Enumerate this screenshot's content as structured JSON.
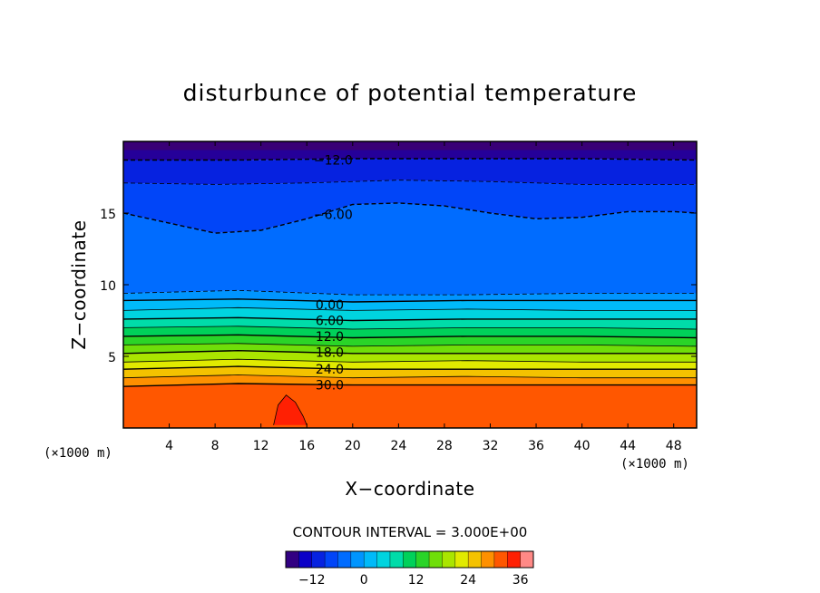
{
  "chart_data": {
    "type": "heatmap",
    "title": "disturbunce of potential temperature",
    "xlabel": "X−coordinate",
    "ylabel": "Z−coordinate",
    "x_unit": "(×1000 m)",
    "y_unit": "(×1000 m)",
    "xlim": [
      0,
      50
    ],
    "ylim": [
      0,
      20
    ],
    "x_ticks": [
      4,
      8,
      12,
      16,
      20,
      24,
      28,
      32,
      36,
      40,
      44,
      48
    ],
    "y_ticks": [
      5,
      10,
      15
    ],
    "contour_interval_text": "CONTOUR INTERVAL = 3.000E+00",
    "contour_interval": 3.0,
    "color_range": [
      -18,
      39
    ],
    "colorbar_ticks": [
      "−12",
      "0",
      "12",
      "24",
      "36"
    ],
    "colorbar_tick_values": [
      -12,
      0,
      12,
      24,
      36
    ],
    "contour_labels": [
      {
        "text": "−12.0",
        "value": -12,
        "x": 18.3,
        "z": 18.7
      },
      {
        "text": "−6.00",
        "value": -6,
        "x": 18.3,
        "z": 14.9
      },
      {
        "text": "0.00",
        "value": 0,
        "x": 18.0,
        "z": 8.6
      },
      {
        "text": "6.00",
        "value": 6,
        "x": 18.0,
        "z": 7.5
      },
      {
        "text": "12.0",
        "value": 12,
        "x": 18.0,
        "z": 6.4
      },
      {
        "text": "18.0",
        "value": 18,
        "x": 18.0,
        "z": 5.3
      },
      {
        "text": "24.0",
        "value": 24,
        "x": 18.0,
        "z": 4.1
      },
      {
        "text": "30.0",
        "value": 30,
        "x": 18.0,
        "z": 3.0
      }
    ],
    "contour_levels": [
      {
        "value": -12,
        "dashed": true,
        "points": [
          [
            0,
            18.7
          ],
          [
            10,
            18.7
          ],
          [
            20,
            18.8
          ],
          [
            30,
            18.8
          ],
          [
            40,
            18.8
          ],
          [
            50,
            18.7
          ]
        ]
      },
      {
        "value": -9,
        "dashed": true,
        "points": [
          [
            0,
            17.1
          ],
          [
            8,
            17.0
          ],
          [
            16,
            17.1
          ],
          [
            24,
            17.3
          ],
          [
            32,
            17.2
          ],
          [
            40,
            17.0
          ],
          [
            50,
            17.0
          ]
        ]
      },
      {
        "value": -6,
        "dashed": true,
        "points": [
          [
            0,
            15.0
          ],
          [
            4,
            14.3
          ],
          [
            8,
            13.6
          ],
          [
            12,
            13.8
          ],
          [
            16,
            14.6
          ],
          [
            20,
            15.6
          ],
          [
            24,
            15.7
          ],
          [
            28,
            15.5
          ],
          [
            32,
            15.0
          ],
          [
            36,
            14.6
          ],
          [
            40,
            14.7
          ],
          [
            44,
            15.1
          ],
          [
            48,
            15.1
          ],
          [
            50,
            15.0
          ]
        ]
      },
      {
        "value": -3,
        "dashed": true,
        "points": [
          [
            0,
            9.4
          ],
          [
            10,
            9.6
          ],
          [
            20,
            9.3
          ],
          [
            30,
            9.3
          ],
          [
            40,
            9.4
          ],
          [
            50,
            9.4
          ]
        ]
      },
      {
        "value": 0,
        "dashed": false,
        "points": [
          [
            0,
            8.9
          ],
          [
            10,
            9.0
          ],
          [
            20,
            8.8
          ],
          [
            30,
            8.9
          ],
          [
            40,
            8.9
          ],
          [
            50,
            8.9
          ]
        ]
      },
      {
        "value": 3,
        "dashed": false,
        "points": [
          [
            0,
            8.2
          ],
          [
            10,
            8.4
          ],
          [
            20,
            8.2
          ],
          [
            30,
            8.3
          ],
          [
            40,
            8.2
          ],
          [
            50,
            8.2
          ]
        ]
      },
      {
        "value": 6,
        "dashed": false,
        "points": [
          [
            0,
            7.6
          ],
          [
            10,
            7.7
          ],
          [
            20,
            7.5
          ],
          [
            30,
            7.6
          ],
          [
            40,
            7.6
          ],
          [
            50,
            7.6
          ]
        ]
      },
      {
        "value": 9,
        "dashed": false,
        "points": [
          [
            0,
            7.0
          ],
          [
            10,
            7.1
          ],
          [
            20,
            6.9
          ],
          [
            30,
            7.0
          ],
          [
            40,
            7.0
          ],
          [
            50,
            6.9
          ]
        ]
      },
      {
        "value": 12,
        "dashed": false,
        "points": [
          [
            0,
            6.4
          ],
          [
            10,
            6.5
          ],
          [
            20,
            6.3
          ],
          [
            30,
            6.4
          ],
          [
            40,
            6.4
          ],
          [
            50,
            6.3
          ]
        ]
      },
      {
        "value": 15,
        "dashed": false,
        "points": [
          [
            0,
            5.8
          ],
          [
            10,
            5.9
          ],
          [
            20,
            5.7
          ],
          [
            30,
            5.8
          ],
          [
            40,
            5.8
          ],
          [
            50,
            5.7
          ]
        ]
      },
      {
        "value": 18,
        "dashed": false,
        "points": [
          [
            0,
            5.2
          ],
          [
            10,
            5.4
          ],
          [
            20,
            5.2
          ],
          [
            30,
            5.2
          ],
          [
            40,
            5.2
          ],
          [
            50,
            5.2
          ]
        ]
      },
      {
        "value": 21,
        "dashed": false,
        "points": [
          [
            0,
            4.6
          ],
          [
            10,
            4.8
          ],
          [
            20,
            4.6
          ],
          [
            30,
            4.7
          ],
          [
            40,
            4.6
          ],
          [
            50,
            4.6
          ]
        ]
      },
      {
        "value": 24,
        "dashed": false,
        "points": [
          [
            0,
            4.1
          ],
          [
            10,
            4.3
          ],
          [
            20,
            4.1
          ],
          [
            30,
            4.1
          ],
          [
            40,
            4.1
          ],
          [
            50,
            4.1
          ]
        ]
      },
      {
        "value": 27,
        "dashed": false,
        "points": [
          [
            0,
            3.5
          ],
          [
            10,
            3.7
          ],
          [
            20,
            3.5
          ],
          [
            30,
            3.6
          ],
          [
            40,
            3.5
          ],
          [
            50,
            3.5
          ]
        ]
      },
      {
        "value": 30,
        "dashed": false,
        "points": [
          [
            0,
            2.9
          ],
          [
            10,
            3.1
          ],
          [
            20,
            3.0
          ],
          [
            30,
            3.0
          ],
          [
            40,
            3.0
          ],
          [
            50,
            3.0
          ]
        ]
      },
      {
        "value": 33,
        "dashed": false,
        "points": [
          [
            13.1,
            0.2
          ],
          [
            13.5,
            1.6
          ],
          [
            14.2,
            2.3
          ],
          [
            15.0,
            1.8
          ],
          [
            15.7,
            0.8
          ],
          [
            16.0,
            0.2
          ]
        ]
      }
    ],
    "grid": false,
    "legend": "colorbar-bottom"
  }
}
